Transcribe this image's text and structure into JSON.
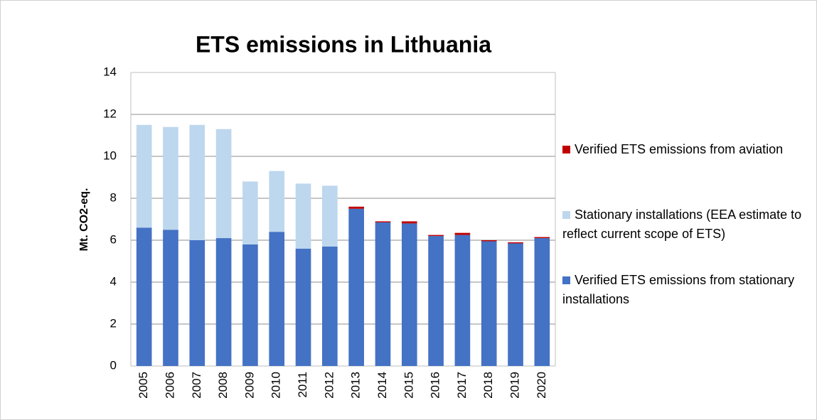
{
  "chart_data": {
    "type": "stacked_bar",
    "title": "ETS emissions in Lithuania",
    "y_label": "Mt. CO2-eq.",
    "categories": [
      "2005",
      "2006",
      "2007",
      "2008",
      "2009",
      "2010",
      "2011",
      "2012",
      "2013",
      "2014",
      "2015",
      "2016",
      "2017",
      "2018",
      "2019",
      "2020"
    ],
    "series": [
      {
        "name": "Verified ETS emissions from stationary installations",
        "color": "#4472c4",
        "values": [
          6.6,
          6.5,
          6.0,
          6.1,
          5.8,
          6.4,
          5.6,
          5.7,
          7.5,
          6.85,
          6.8,
          6.2,
          6.25,
          5.95,
          5.85,
          6.1
        ]
      },
      {
        "name": "Stationary installations (EEA estimate to reflect current scope of ETS)",
        "color": "#bdd7ee",
        "values": [
          4.9,
          4.9,
          5.5,
          5.2,
          3.0,
          2.9,
          3.1,
          2.9,
          0,
          0,
          0,
          0,
          0,
          0,
          0,
          0
        ]
      },
      {
        "name": "Verified ETS emissions from aviation",
        "color": "#c00000",
        "values": [
          0,
          0,
          0,
          0,
          0,
          0,
          0,
          0,
          0.1,
          0.05,
          0.1,
          0.05,
          0.1,
          0.05,
          0.05,
          0.05
        ]
      }
    ],
    "ylim": [
      0,
      14
    ],
    "yticks": [
      0,
      2,
      4,
      6,
      8,
      10,
      12,
      14
    ],
    "grid": true,
    "legend": "right"
  }
}
